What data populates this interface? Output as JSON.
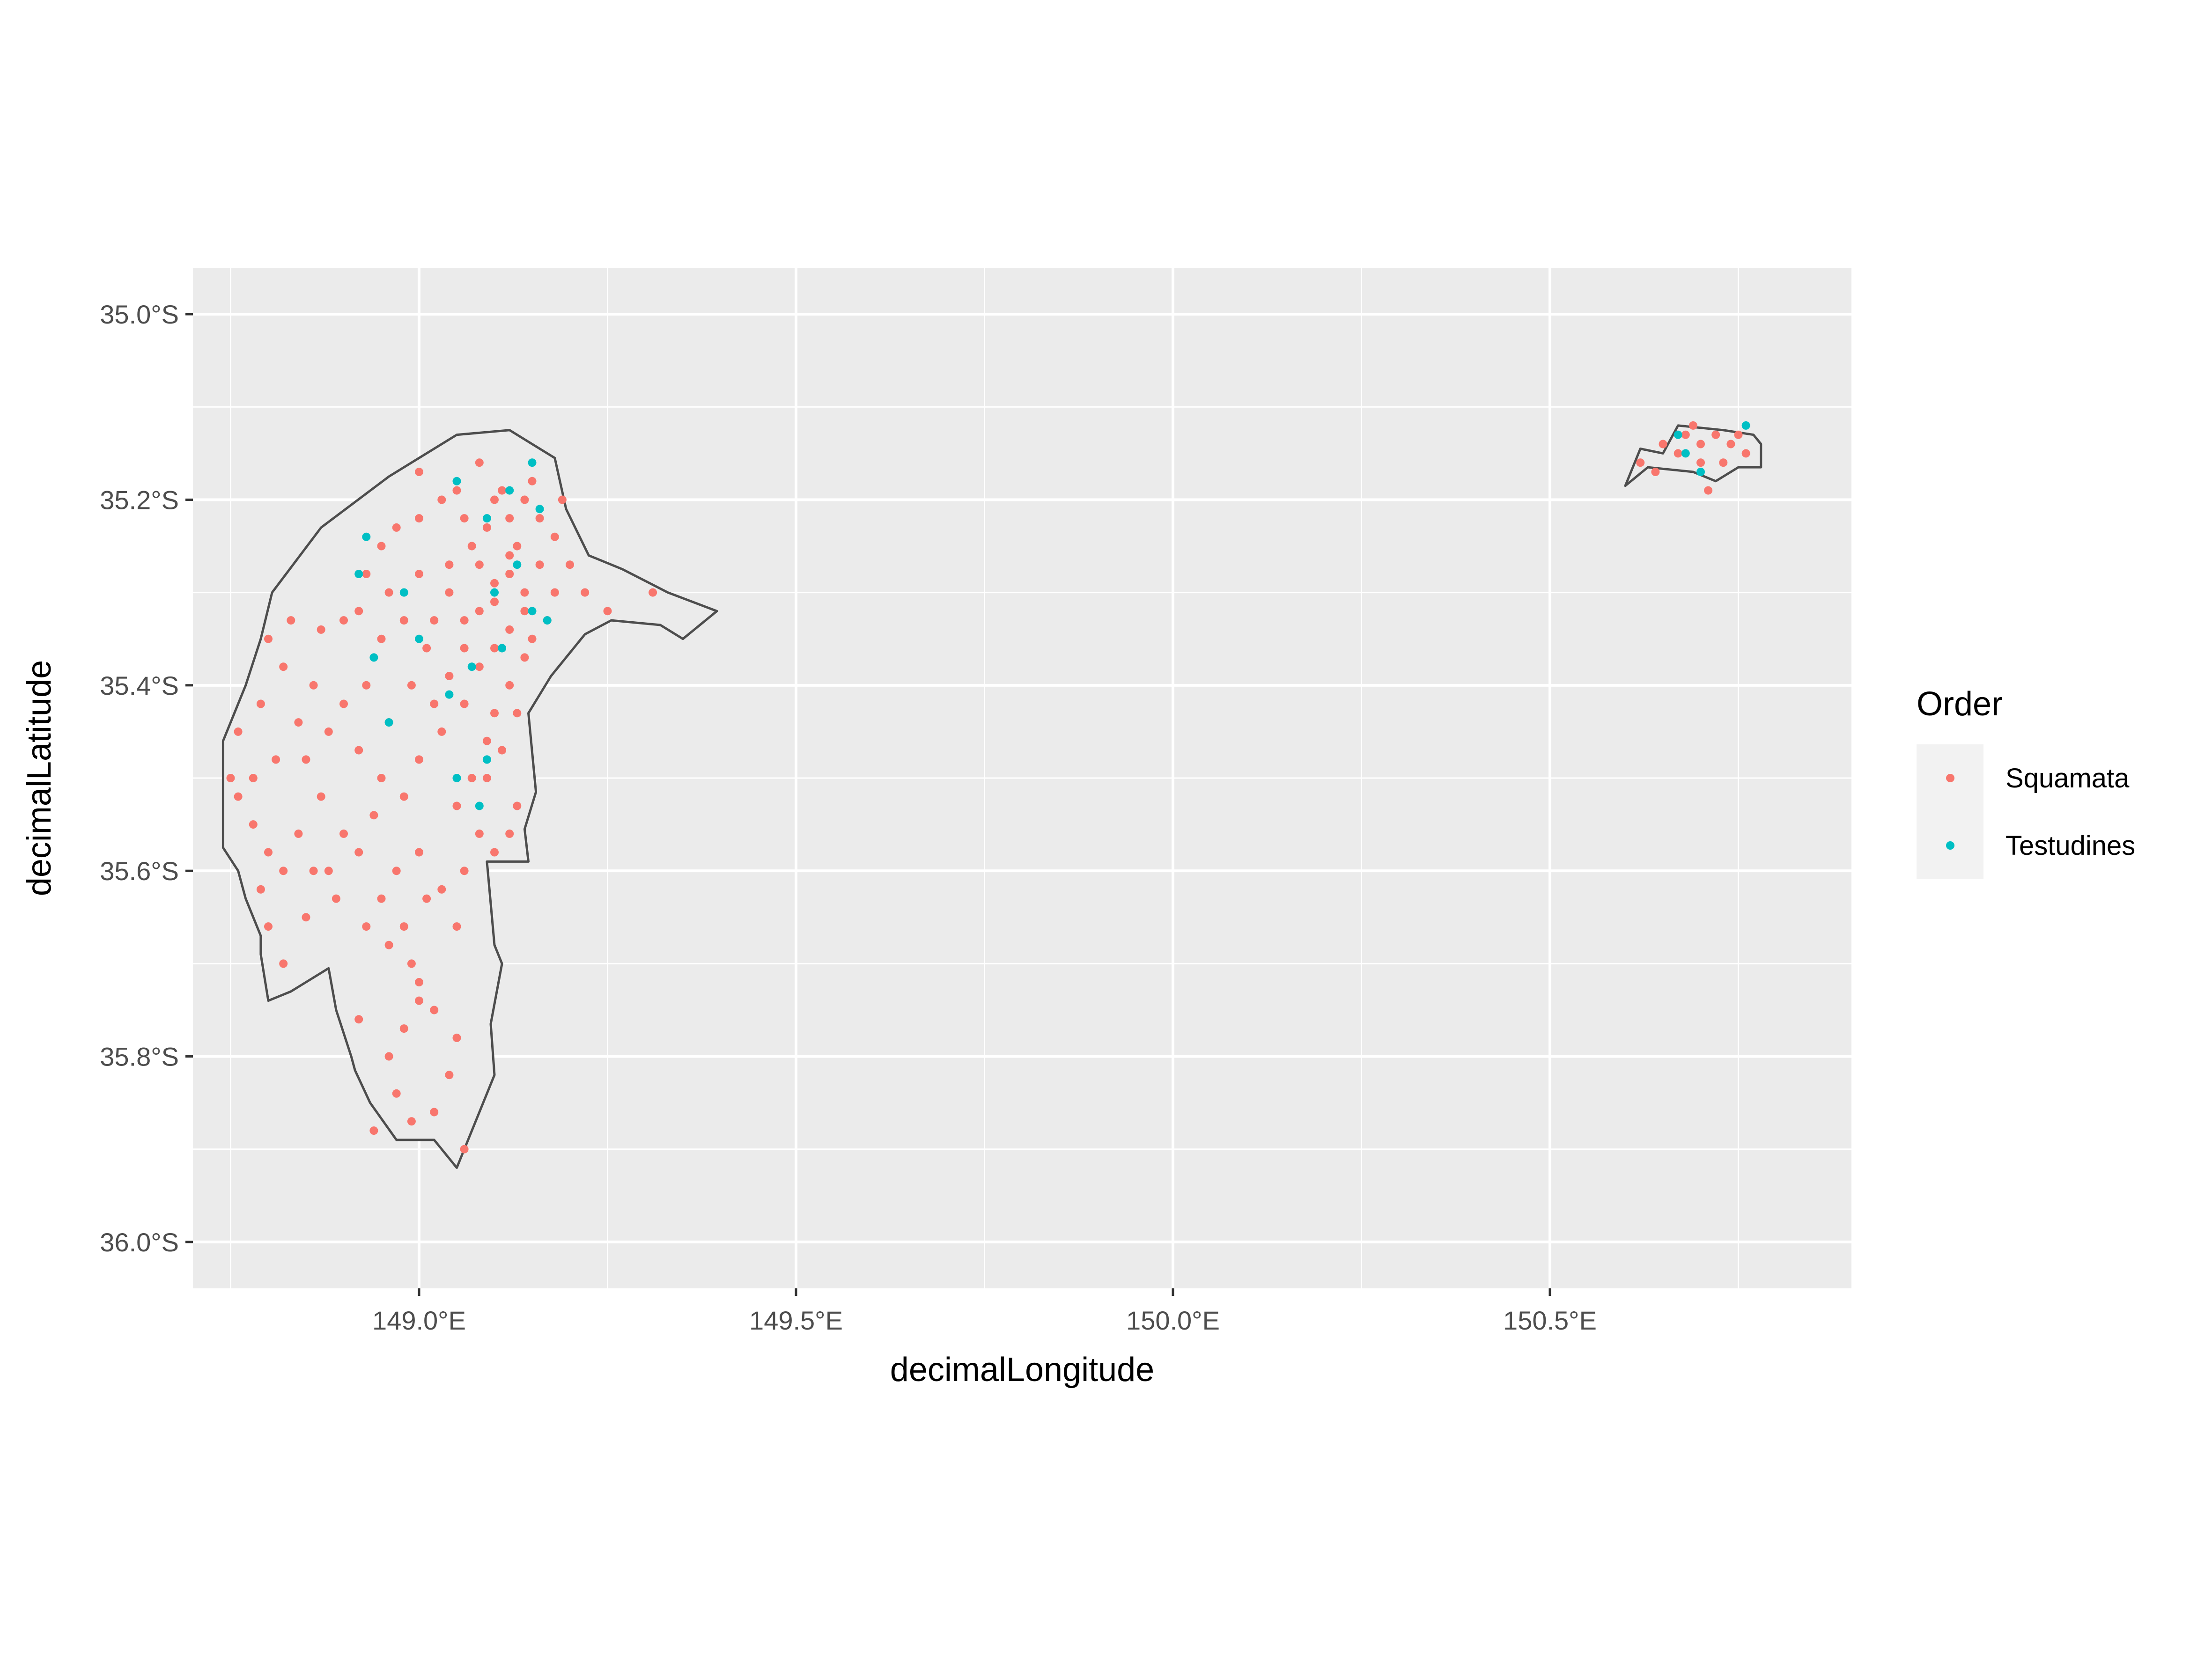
{
  "chart_data": {
    "type": "scatter",
    "xlabel": "decimalLongitude",
    "ylabel": "decimalLatitude",
    "xlim": [
      148.7,
      150.9
    ],
    "ylim": [
      -36.05,
      -34.95
    ],
    "x_ticks": [
      149.0,
      149.5,
      150.0,
      150.5
    ],
    "x_tick_labels": [
      "149.0°E",
      "149.5°E",
      "150.0°E",
      "150.5°E"
    ],
    "y_ticks": [
      -35.0,
      -35.2,
      -35.4,
      -35.6,
      -35.8,
      -36.0
    ],
    "y_tick_labels": [
      "35.0°S",
      "35.2°S",
      "35.4°S",
      "35.6°S",
      "35.8°S",
      "36.0°S"
    ],
    "grid": true,
    "legend": {
      "title": "Order",
      "position": "right",
      "entries": [
        {
          "label": "Squamata",
          "color": "#F8766D"
        },
        {
          "label": "Testudines",
          "color": "#00BFC4"
        }
      ]
    },
    "colors": {
      "panel_background": "#EBEBEB",
      "grid_line": "#FFFFFF",
      "region_fill": "#EBEBEB",
      "region_outline": "#4D4D4D",
      "squamata": "#F8766D",
      "testudines": "#00BFC4"
    },
    "regions": [
      {
        "outline": [
          [
            149.12,
            -35.125
          ],
          [
            149.18,
            -35.155
          ],
          [
            149.195,
            -35.21
          ],
          [
            149.225,
            -35.26
          ],
          [
            149.27,
            -35.275
          ],
          [
            149.33,
            -35.3
          ],
          [
            149.395,
            -35.32
          ],
          [
            149.35,
            -35.35
          ],
          [
            149.32,
            -35.335
          ],
          [
            149.255,
            -35.33
          ],
          [
            149.22,
            -35.345
          ],
          [
            149.175,
            -35.39
          ],
          [
            149.145,
            -35.43
          ],
          [
            149.155,
            -35.515
          ],
          [
            149.14,
            -35.555
          ],
          [
            149.145,
            -35.59
          ],
          [
            149.09,
            -35.59
          ],
          [
            149.1,
            -35.68
          ],
          [
            149.11,
            -35.7
          ],
          [
            149.095,
            -35.765
          ],
          [
            149.1,
            -35.82
          ],
          [
            149.085,
            -35.85
          ],
          [
            149.05,
            -35.92
          ],
          [
            149.02,
            -35.89
          ],
          [
            148.97,
            -35.89
          ],
          [
            148.935,
            -35.85
          ],
          [
            148.915,
            -35.815
          ],
          [
            148.91,
            -35.8
          ],
          [
            148.89,
            -35.75
          ],
          [
            148.88,
            -35.705
          ],
          [
            148.83,
            -35.73
          ],
          [
            148.8,
            -35.74
          ],
          [
            148.79,
            -35.69
          ],
          [
            148.79,
            -35.67
          ],
          [
            148.77,
            -35.63
          ],
          [
            148.76,
            -35.6
          ],
          [
            148.74,
            -35.575
          ],
          [
            148.74,
            -35.52
          ],
          [
            148.74,
            -35.46
          ],
          [
            148.77,
            -35.4
          ],
          [
            148.79,
            -35.35
          ],
          [
            148.805,
            -35.3
          ],
          [
            148.87,
            -35.23
          ],
          [
            148.96,
            -35.175
          ],
          [
            149.05,
            -35.13
          ]
        ]
      },
      {
        "outline": [
          [
            150.6,
            -35.185
          ],
          [
            150.62,
            -35.145
          ],
          [
            150.65,
            -35.15
          ],
          [
            150.67,
            -35.12
          ],
          [
            150.73,
            -35.125
          ],
          [
            150.77,
            -35.13
          ],
          [
            150.78,
            -35.14
          ],
          [
            150.78,
            -35.165
          ],
          [
            150.75,
            -35.165
          ],
          [
            150.72,
            -35.18
          ],
          [
            150.69,
            -35.17
          ],
          [
            150.63,
            -35.165
          ]
        ]
      }
    ],
    "series": [
      {
        "name": "Squamata",
        "points": [
          [
            149.0,
            -35.17
          ],
          [
            149.05,
            -35.19
          ],
          [
            149.08,
            -35.16
          ],
          [
            149.1,
            -35.2
          ],
          [
            149.12,
            -35.22
          ],
          [
            149.15,
            -35.18
          ],
          [
            149.13,
            -35.25
          ],
          [
            149.09,
            -35.23
          ],
          [
            149.06,
            -35.22
          ],
          [
            149.03,
            -35.2
          ],
          [
            149.0,
            -35.22
          ],
          [
            148.97,
            -35.23
          ],
          [
            148.95,
            -35.25
          ],
          [
            148.93,
            -35.28
          ],
          [
            148.96,
            -35.3
          ],
          [
            149.0,
            -35.28
          ],
          [
            149.04,
            -35.27
          ],
          [
            149.08,
            -35.27
          ],
          [
            149.12,
            -35.28
          ],
          [
            149.16,
            -35.27
          ],
          [
            149.18,
            -35.24
          ],
          [
            149.2,
            -35.27
          ],
          [
            149.18,
            -35.3
          ],
          [
            149.14,
            -35.32
          ],
          [
            149.1,
            -35.31
          ],
          [
            149.06,
            -35.33
          ],
          [
            149.02,
            -35.33
          ],
          [
            148.98,
            -35.33
          ],
          [
            148.95,
            -35.35
          ],
          [
            148.92,
            -35.32
          ],
          [
            148.9,
            -35.33
          ],
          [
            148.87,
            -35.34
          ],
          [
            148.83,
            -35.33
          ],
          [
            148.8,
            -35.35
          ],
          [
            148.82,
            -35.38
          ],
          [
            148.79,
            -35.42
          ],
          [
            148.76,
            -35.45
          ],
          [
            148.75,
            -35.5
          ],
          [
            148.76,
            -35.52
          ],
          [
            148.78,
            -35.55
          ],
          [
            148.8,
            -35.58
          ],
          [
            148.82,
            -35.6
          ],
          [
            148.79,
            -35.62
          ],
          [
            148.8,
            -35.66
          ],
          [
            148.82,
            -35.7
          ],
          [
            148.85,
            -35.65
          ],
          [
            148.88,
            -35.6
          ],
          [
            148.9,
            -35.56
          ],
          [
            148.87,
            -35.52
          ],
          [
            148.85,
            -35.48
          ],
          [
            148.88,
            -35.45
          ],
          [
            148.92,
            -35.47
          ],
          [
            148.95,
            -35.5
          ],
          [
            148.98,
            -35.52
          ],
          [
            149.0,
            -35.48
          ],
          [
            149.03,
            -35.45
          ],
          [
            149.06,
            -35.42
          ],
          [
            149.08,
            -35.38
          ],
          [
            149.1,
            -35.36
          ],
          [
            149.12,
            -35.34
          ],
          [
            149.14,
            -35.37
          ],
          [
            149.12,
            -35.4
          ],
          [
            149.1,
            -35.43
          ],
          [
            149.09,
            -35.46
          ],
          [
            149.07,
            -35.5
          ],
          [
            149.05,
            -35.53
          ],
          [
            149.08,
            -35.56
          ],
          [
            149.1,
            -35.58
          ],
          [
            149.06,
            -35.6
          ],
          [
            149.03,
            -35.62
          ],
          [
            149.0,
            -35.58
          ],
          [
            148.97,
            -35.6
          ],
          [
            148.95,
            -35.63
          ],
          [
            148.93,
            -35.66
          ],
          [
            148.96,
            -35.68
          ],
          [
            148.99,
            -35.7
          ],
          [
            149.0,
            -35.74
          ],
          [
            148.98,
            -35.77
          ],
          [
            148.96,
            -35.8
          ],
          [
            148.97,
            -35.84
          ],
          [
            148.99,
            -35.87
          ],
          [
            149.02,
            -35.86
          ],
          [
            149.04,
            -35.82
          ],
          [
            149.05,
            -35.78
          ],
          [
            149.02,
            -35.75
          ],
          [
            149.0,
            -35.72
          ],
          [
            148.98,
            -35.66
          ],
          [
            149.01,
            -35.63
          ],
          [
            149.05,
            -35.66
          ],
          [
            148.94,
            -35.88
          ],
          [
            148.92,
            -35.76
          ],
          [
            149.06,
            -35.9
          ],
          [
            149.12,
            -35.26
          ],
          [
            149.1,
            -35.29
          ],
          [
            149.14,
            -35.3
          ],
          [
            149.08,
            -35.32
          ],
          [
            149.06,
            -35.36
          ],
          [
            149.04,
            -35.39
          ],
          [
            149.02,
            -35.42
          ],
          [
            149.15,
            -35.35
          ],
          [
            149.17,
            -35.33
          ],
          [
            149.13,
            -35.43
          ],
          [
            149.11,
            -35.47
          ],
          [
            149.09,
            -35.5
          ],
          [
            149.13,
            -35.53
          ],
          [
            149.12,
            -35.56
          ],
          [
            148.93,
            -35.4
          ],
          [
            148.9,
            -35.42
          ],
          [
            148.86,
            -35.4
          ],
          [
            148.84,
            -35.44
          ],
          [
            148.81,
            -35.48
          ],
          [
            148.78,
            -35.5
          ],
          [
            148.84,
            -35.56
          ],
          [
            148.86,
            -35.6
          ],
          [
            148.89,
            -35.63
          ],
          [
            148.92,
            -35.58
          ],
          [
            148.94,
            -35.54
          ],
          [
            148.96,
            -35.44
          ],
          [
            148.99,
            -35.4
          ],
          [
            149.01,
            -35.36
          ],
          [
            149.04,
            -35.3
          ],
          [
            149.07,
            -35.25
          ],
          [
            149.11,
            -35.19
          ],
          [
            149.14,
            -35.2
          ],
          [
            149.16,
            -35.22
          ],
          [
            149.19,
            -35.2
          ],
          [
            149.22,
            -35.3
          ],
          [
            149.25,
            -35.32
          ],
          [
            149.31,
            -35.3
          ],
          [
            150.62,
            -35.16
          ],
          [
            150.65,
            -35.14
          ],
          [
            150.68,
            -35.13
          ],
          [
            150.7,
            -35.14
          ],
          [
            150.72,
            -35.13
          ],
          [
            150.74,
            -35.14
          ],
          [
            150.76,
            -35.15
          ],
          [
            150.7,
            -35.16
          ],
          [
            150.67,
            -35.15
          ],
          [
            150.71,
            -35.19
          ],
          [
            150.73,
            -35.16
          ],
          [
            150.69,
            -35.12
          ],
          [
            150.75,
            -35.13
          ],
          [
            150.64,
            -35.17
          ]
        ]
      },
      {
        "name": "Testudines",
        "points": [
          [
            148.93,
            -35.24
          ],
          [
            148.98,
            -35.3
          ],
          [
            149.05,
            -35.18
          ],
          [
            149.09,
            -35.22
          ],
          [
            149.12,
            -35.19
          ],
          [
            149.15,
            -35.16
          ],
          [
            149.16,
            -35.21
          ],
          [
            149.13,
            -35.27
          ],
          [
            149.15,
            -35.32
          ],
          [
            149.17,
            -35.33
          ],
          [
            149.11,
            -35.36
          ],
          [
            149.07,
            -35.38
          ],
          [
            149.04,
            -35.41
          ],
          [
            148.94,
            -35.37
          ],
          [
            148.96,
            -35.44
          ],
          [
            149.0,
            -35.35
          ],
          [
            149.09,
            -35.48
          ],
          [
            149.05,
            -35.5
          ],
          [
            149.08,
            -35.53
          ],
          [
            148.92,
            -35.28
          ],
          [
            149.1,
            -35.3
          ],
          [
            150.67,
            -35.13
          ],
          [
            150.68,
            -35.15
          ],
          [
            150.7,
            -35.17
          ],
          [
            150.76,
            -35.12
          ]
        ]
      }
    ]
  }
}
